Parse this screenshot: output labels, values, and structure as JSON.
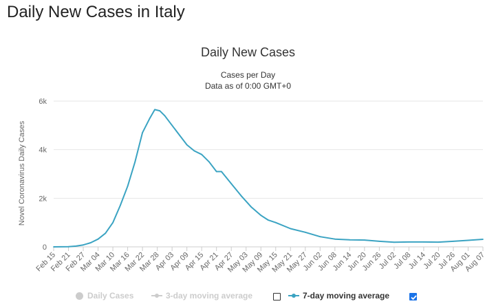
{
  "page": {
    "heading": "Daily New Cases in Italy"
  },
  "chart_data": {
    "type": "line",
    "title": "Daily New Cases",
    "subtitle": "Cases per Day",
    "subtitle2": "Data as of 0:00 GMT+0",
    "ylabel": "Novel Coronavirus Daily Cases",
    "ylim": [
      0,
      6000
    ],
    "yticks": [
      0,
      2000,
      4000,
      6000
    ],
    "ytick_labels": [
      "0",
      "2k",
      "4k",
      "6k"
    ],
    "grid": true,
    "x_start": "Feb 15",
    "x_end": "Aug 07",
    "x_tick_labels": [
      "Feb 15",
      "Feb 21",
      "Feb 27",
      "Mar 04",
      "Mar 10",
      "Mar 16",
      "Mar 22",
      "Mar 28",
      "Apr 03",
      "Apr 09",
      "Apr 15",
      "Apr 21",
      "Apr 27",
      "May 03",
      "May 09",
      "May 15",
      "May 21",
      "May 27",
      "Jun 02",
      "Jun 08",
      "Jun 14",
      "Jun 20",
      "Jun 26",
      "Jul 02",
      "Jul 08",
      "Jul 14",
      "Jul 20",
      "Jul 26",
      "Aug 01",
      "Aug 07"
    ],
    "series": [
      {
        "name": "7-day moving average",
        "color": "#3aa3c2",
        "points": [
          [
            "Feb 15",
            0
          ],
          [
            "Feb 21",
            5
          ],
          [
            "Feb 24",
            30
          ],
          [
            "Feb 27",
            80
          ],
          [
            "Mar 01",
            170
          ],
          [
            "Mar 04",
            320
          ],
          [
            "Mar 07",
            560
          ],
          [
            "Mar 10",
            1000
          ],
          [
            "Mar 13",
            1700
          ],
          [
            "Mar 16",
            2500
          ],
          [
            "Mar 19",
            3500
          ],
          [
            "Mar 22",
            4700
          ],
          [
            "Mar 25",
            5300
          ],
          [
            "Mar 27",
            5650
          ],
          [
            "Mar 29",
            5600
          ],
          [
            "Mar 31",
            5400
          ],
          [
            "Apr 03",
            5000
          ],
          [
            "Apr 06",
            4600
          ],
          [
            "Apr 09",
            4200
          ],
          [
            "Apr 12",
            3950
          ],
          [
            "Apr 15",
            3800
          ],
          [
            "Apr 18",
            3500
          ],
          [
            "Apr 21",
            3100
          ],
          [
            "Apr 23",
            3100
          ],
          [
            "Apr 27",
            2600
          ],
          [
            "May 01",
            2100
          ],
          [
            "May 05",
            1650
          ],
          [
            "May 09",
            1300
          ],
          [
            "May 12",
            1100
          ],
          [
            "May 15",
            1000
          ],
          [
            "May 21",
            750
          ],
          [
            "May 27",
            600
          ],
          [
            "Jun 02",
            420
          ],
          [
            "Jun 08",
            320
          ],
          [
            "Jun 14",
            290
          ],
          [
            "Jun 20",
            280
          ],
          [
            "Jun 26",
            230
          ],
          [
            "Jul 02",
            190
          ],
          [
            "Jul 08",
            200
          ],
          [
            "Jul 14",
            200
          ],
          [
            "Jul 20",
            195
          ],
          [
            "Jul 26",
            230
          ],
          [
            "Aug 01",
            270
          ],
          [
            "Aug 07",
            310
          ]
        ]
      }
    ],
    "legend": {
      "placement": "bottom",
      "items": [
        {
          "label": "Daily Cases",
          "active": false,
          "checked": null
        },
        {
          "label": "3-day moving average",
          "active": false,
          "checked": false
        },
        {
          "label": "7-day moving average",
          "active": true,
          "checked": true
        }
      ]
    }
  }
}
